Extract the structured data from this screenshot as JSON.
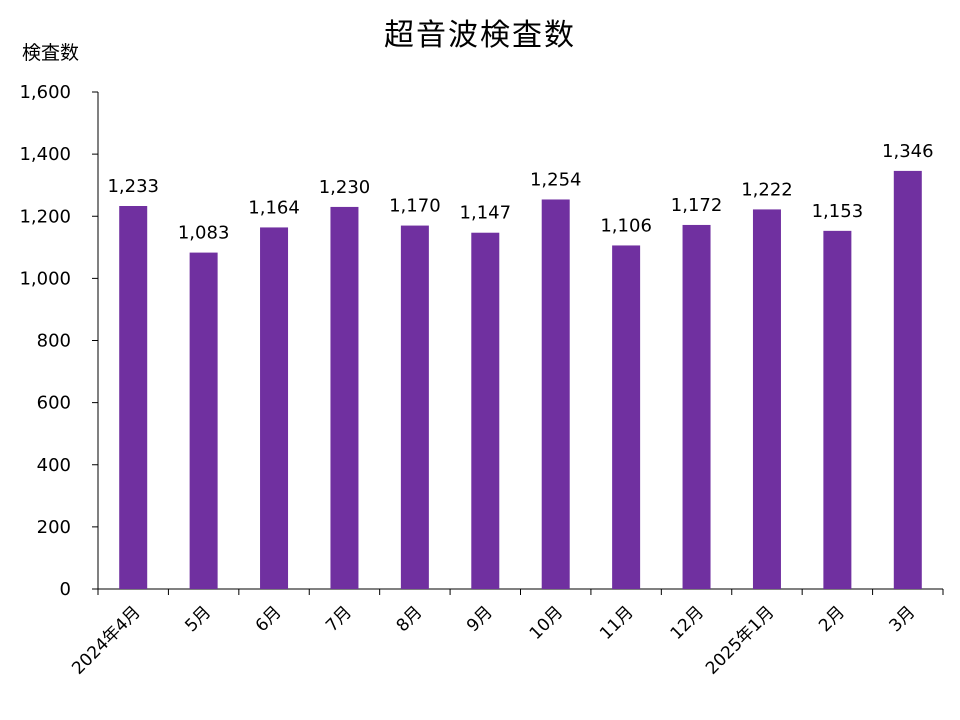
{
  "chart_data": {
    "type": "bar",
    "title": "超音波検査数",
    "ylabel": "検査数",
    "xlabel": "",
    "categories": [
      "2024年4月",
      "5月",
      "6月",
      "7月",
      "8月",
      "9月",
      "10月",
      "11月",
      "12月",
      "2025年1月",
      "2月",
      "3月"
    ],
    "values": [
      1233,
      1083,
      1164,
      1230,
      1170,
      1147,
      1254,
      1106,
      1172,
      1222,
      1153,
      1346
    ],
    "value_labels": [
      "1,233",
      "1,083",
      "1,164",
      "1,230",
      "1,170",
      "1,147",
      "1,254",
      "1,106",
      "1,172",
      "1,222",
      "1,153",
      "1,346"
    ],
    "ylim": [
      0,
      1600
    ],
    "yticks": [
      0,
      200,
      400,
      600,
      800,
      1000,
      1200,
      1400,
      1600
    ],
    "ytick_labels": [
      "0",
      "200",
      "400",
      "600",
      "800",
      "1,000",
      "1,200",
      "1,400",
      "1,600"
    ],
    "grid": false,
    "legend": "none",
    "colors": {
      "bar": "#7030A0",
      "axis": "#000000"
    }
  }
}
